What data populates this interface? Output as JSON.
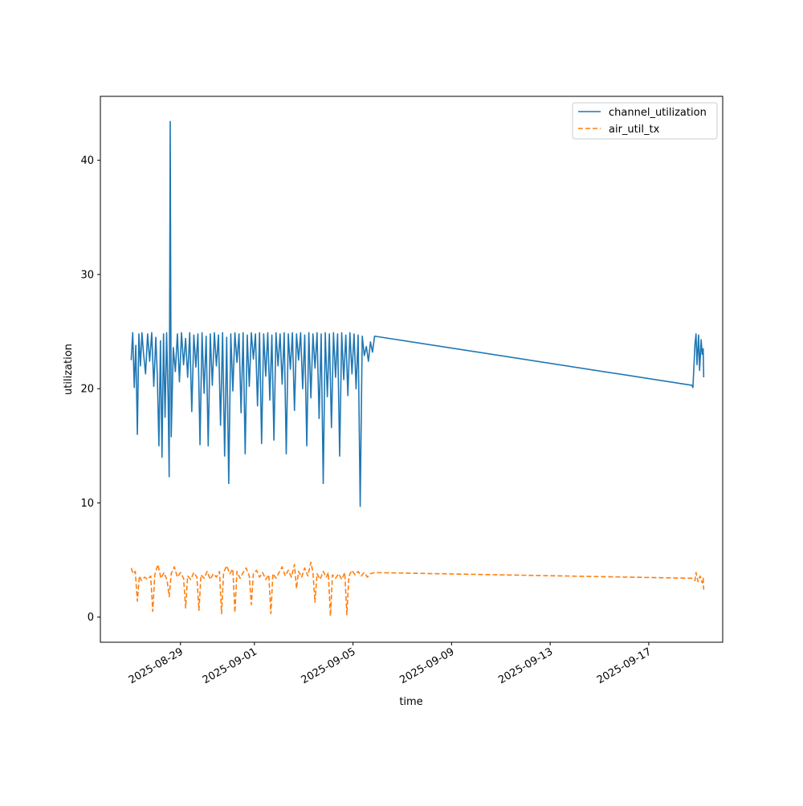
{
  "chart_data": {
    "type": "line",
    "title": "",
    "xlabel": "time",
    "ylabel": "utilization",
    "x_is_date": true,
    "xlim": [
      "2025-08-25T18:00",
      "2025-09-20T00:00"
    ],
    "ylim": [
      -2.2,
      45.6
    ],
    "x_ticks": [
      "2025-08-29",
      "2025-09-01",
      "2025-09-05",
      "2025-09-09",
      "2025-09-13",
      "2025-09-17"
    ],
    "y_ticks": [
      0,
      10,
      20,
      30,
      40
    ],
    "grid": false,
    "legend_position": "upper right",
    "series": [
      {
        "name": "channel_utilization",
        "color": "#1f77b4",
        "dash": "solid",
        "points": [
          [
            "2025-08-27T00:00",
            22.5
          ],
          [
            "2025-08-27T01:30",
            24.9
          ],
          [
            "2025-08-27T03:00",
            20.1
          ],
          [
            "2025-08-27T04:30",
            23.8
          ],
          [
            "2025-08-27T06:00",
            16.0
          ],
          [
            "2025-08-27T07:30",
            24.8
          ],
          [
            "2025-08-27T09:00",
            22.0
          ],
          [
            "2025-08-27T10:30",
            24.9
          ],
          [
            "2025-08-27T12:00",
            23.1
          ],
          [
            "2025-08-27T14:00",
            21.3
          ],
          [
            "2025-08-27T16:00",
            24.8
          ],
          [
            "2025-08-27T18:00",
            22.4
          ],
          [
            "2025-08-27T20:00",
            24.9
          ],
          [
            "2025-08-27T22:00",
            20.2
          ],
          [
            "2025-08-28T00:00",
            24.5
          ],
          [
            "2025-08-28T01:30",
            21.0
          ],
          [
            "2025-08-28T03:00",
            15.0
          ],
          [
            "2025-08-28T04:30",
            24.2
          ],
          [
            "2025-08-28T06:00",
            14.0
          ],
          [
            "2025-08-28T07:30",
            24.8
          ],
          [
            "2025-08-28T09:00",
            17.5
          ],
          [
            "2025-08-28T10:30",
            24.9
          ],
          [
            "2025-08-28T12:00",
            19.0
          ],
          [
            "2025-08-28T13:00",
            12.3
          ],
          [
            "2025-08-28T14:00",
            43.4
          ],
          [
            "2025-08-28T15:00",
            15.8
          ],
          [
            "2025-08-28T17:00",
            23.6
          ],
          [
            "2025-08-28T19:00",
            21.5
          ],
          [
            "2025-08-28T21:00",
            24.8
          ],
          [
            "2025-08-28T23:00",
            20.6
          ],
          [
            "2025-08-29T01:00",
            24.9
          ],
          [
            "2025-08-29T03:00",
            22.1
          ],
          [
            "2025-08-29T05:00",
            24.4
          ],
          [
            "2025-08-29T07:00",
            21.0
          ],
          [
            "2025-08-29T09:00",
            24.9
          ],
          [
            "2025-08-29T11:00",
            18.0
          ],
          [
            "2025-08-29T13:00",
            24.7
          ],
          [
            "2025-08-29T15:00",
            21.9
          ],
          [
            "2025-08-29T17:00",
            24.8
          ],
          [
            "2025-08-29T19:00",
            15.1
          ],
          [
            "2025-08-29T21:00",
            24.9
          ],
          [
            "2025-08-29T23:00",
            19.6
          ],
          [
            "2025-08-30T01:00",
            24.6
          ],
          [
            "2025-08-30T03:00",
            15.0
          ],
          [
            "2025-08-30T05:00",
            24.8
          ],
          [
            "2025-08-30T07:00",
            20.3
          ],
          [
            "2025-08-30T09:00",
            24.9
          ],
          [
            "2025-08-30T11:00",
            22.0
          ],
          [
            "2025-08-30T13:00",
            24.7
          ],
          [
            "2025-08-30T15:00",
            16.8
          ],
          [
            "2025-08-30T17:00",
            24.9
          ],
          [
            "2025-08-30T19:00",
            14.1
          ],
          [
            "2025-08-30T21:00",
            24.5
          ],
          [
            "2025-08-30T23:00",
            11.7
          ],
          [
            "2025-08-31T01:00",
            24.8
          ],
          [
            "2025-08-31T03:00",
            19.8
          ],
          [
            "2025-08-31T05:00",
            24.9
          ],
          [
            "2025-08-31T07:00",
            22.3
          ],
          [
            "2025-08-31T09:00",
            24.8
          ],
          [
            "2025-08-31T11:00",
            17.9
          ],
          [
            "2025-08-31T13:00",
            24.9
          ],
          [
            "2025-08-31T15:00",
            14.3
          ],
          [
            "2025-08-31T17:00",
            24.7
          ],
          [
            "2025-08-31T19:00",
            20.2
          ],
          [
            "2025-08-31T21:00",
            24.9
          ],
          [
            "2025-08-31T23:00",
            22.6
          ],
          [
            "2025-09-01T01:00",
            24.8
          ],
          [
            "2025-09-01T03:00",
            18.5
          ],
          [
            "2025-09-01T05:00",
            24.9
          ],
          [
            "2025-09-01T07:00",
            15.2
          ],
          [
            "2025-09-01T09:00",
            24.8
          ],
          [
            "2025-09-01T11:00",
            21.1
          ],
          [
            "2025-09-01T13:00",
            24.9
          ],
          [
            "2025-09-01T15:00",
            19.0
          ],
          [
            "2025-09-01T17:00",
            24.7
          ],
          [
            "2025-09-01T19:00",
            15.5
          ],
          [
            "2025-09-01T21:00",
            24.9
          ],
          [
            "2025-09-01T23:00",
            22.0
          ],
          [
            "2025-09-02T01:00",
            24.8
          ],
          [
            "2025-09-02T03:00",
            20.4
          ],
          [
            "2025-09-02T05:00",
            24.9
          ],
          [
            "2025-09-02T07:00",
            14.3
          ],
          [
            "2025-09-02T09:00",
            24.8
          ],
          [
            "2025-09-02T11:00",
            21.7
          ],
          [
            "2025-09-02T13:00",
            24.9
          ],
          [
            "2025-09-02T15:00",
            18.1
          ],
          [
            "2025-09-02T17:00",
            24.8
          ],
          [
            "2025-09-02T19:00",
            22.5
          ],
          [
            "2025-09-02T21:00",
            24.9
          ],
          [
            "2025-09-02T23:00",
            20.0
          ],
          [
            "2025-09-03T01:00",
            24.7
          ],
          [
            "2025-09-03T03:00",
            15.0
          ],
          [
            "2025-09-03T05:00",
            24.9
          ],
          [
            "2025-09-03T07:00",
            19.2
          ],
          [
            "2025-09-03T09:00",
            24.8
          ],
          [
            "2025-09-03T11:00",
            21.8
          ],
          [
            "2025-09-03T13:00",
            24.9
          ],
          [
            "2025-09-03T15:00",
            17.4
          ],
          [
            "2025-09-03T17:00",
            24.8
          ],
          [
            "2025-09-03T19:00",
            11.7
          ],
          [
            "2025-09-03T21:00",
            24.9
          ],
          [
            "2025-09-03T23:00",
            19.3
          ],
          [
            "2025-09-04T01:00",
            24.8
          ],
          [
            "2025-09-04T03:00",
            16.6
          ],
          [
            "2025-09-04T05:00",
            24.9
          ],
          [
            "2025-09-04T07:00",
            21.0
          ],
          [
            "2025-09-04T09:00",
            24.8
          ],
          [
            "2025-09-04T11:00",
            14.1
          ],
          [
            "2025-09-04T13:00",
            24.9
          ],
          [
            "2025-09-04T15:00",
            20.8
          ],
          [
            "2025-09-04T17:00",
            24.7
          ],
          [
            "2025-09-04T19:00",
            19.4
          ],
          [
            "2025-09-04T21:00",
            24.9
          ],
          [
            "2025-09-04T23:00",
            21.3
          ],
          [
            "2025-09-05T01:00",
            24.8
          ],
          [
            "2025-09-05T03:00",
            20.0
          ],
          [
            "2025-09-05T05:00",
            24.7
          ],
          [
            "2025-09-05T07:00",
            9.7
          ],
          [
            "2025-09-05T09:00",
            24.6
          ],
          [
            "2025-09-05T11:00",
            22.9
          ],
          [
            "2025-09-05T13:00",
            23.7
          ],
          [
            "2025-09-05T15:00",
            22.4
          ],
          [
            "2025-09-05T17:00",
            24.1
          ],
          [
            "2025-09-05T19:00",
            23.2
          ],
          [
            "2025-09-05T21:00",
            24.6
          ],
          [
            "2025-09-18T18:00",
            20.3
          ],
          [
            "2025-09-18T19:00",
            20.1
          ],
          [
            "2025-09-18T21:00",
            23.9
          ],
          [
            "2025-09-18T22:00",
            24.8
          ],
          [
            "2025-09-18T23:00",
            22.1
          ],
          [
            "2025-09-19T00:30",
            24.7
          ],
          [
            "2025-09-19T01:30",
            21.6
          ],
          [
            "2025-09-19T03:00",
            24.3
          ],
          [
            "2025-09-19T04:00",
            23.0
          ],
          [
            "2025-09-19T05:00",
            23.5
          ],
          [
            "2025-09-19T05:30",
            21.0
          ]
        ]
      },
      {
        "name": "air_util_tx",
        "color": "#ff7f0e",
        "dash": "dashed",
        "points": [
          [
            "2025-08-27T00:00",
            4.3
          ],
          [
            "2025-08-27T02:00",
            3.8
          ],
          [
            "2025-08-27T04:00",
            4.0
          ],
          [
            "2025-08-27T06:00",
            1.4
          ],
          [
            "2025-08-27T08:00",
            3.6
          ],
          [
            "2025-08-27T10:00",
            3.2
          ],
          [
            "2025-08-27T13:00",
            3.5
          ],
          [
            "2025-08-27T16:00",
            3.3
          ],
          [
            "2025-08-27T19:00",
            3.6
          ],
          [
            "2025-08-27T21:00",
            0.5
          ],
          [
            "2025-08-27T23:00",
            3.7
          ],
          [
            "2025-08-28T02:00",
            4.6
          ],
          [
            "2025-08-28T05:00",
            3.4
          ],
          [
            "2025-08-28T08:00",
            3.9
          ],
          [
            "2025-08-28T11:00",
            3.2
          ],
          [
            "2025-08-28T13:00",
            1.8
          ],
          [
            "2025-08-28T15:00",
            3.8
          ],
          [
            "2025-08-28T18:00",
            4.4
          ],
          [
            "2025-08-28T21:00",
            3.5
          ],
          [
            "2025-08-29T00:00",
            3.9
          ],
          [
            "2025-08-29T03:00",
            3.4
          ],
          [
            "2025-08-29T05:00",
            0.8
          ],
          [
            "2025-08-29T07:00",
            3.6
          ],
          [
            "2025-08-29T10:00",
            3.3
          ],
          [
            "2025-08-29T13:00",
            3.9
          ],
          [
            "2025-08-29T16:00",
            3.5
          ],
          [
            "2025-08-29T18:00",
            0.6
          ],
          [
            "2025-08-29T20:00",
            3.7
          ],
          [
            "2025-08-29T23:00",
            3.4
          ],
          [
            "2025-08-30T02:00",
            4.0
          ],
          [
            "2025-08-30T05:00",
            3.3
          ],
          [
            "2025-08-30T08:00",
            3.8
          ],
          [
            "2025-08-30T11:00",
            3.5
          ],
          [
            "2025-08-30T14:00",
            4.0
          ],
          [
            "2025-08-30T16:00",
            0.3
          ],
          [
            "2025-08-30T18:00",
            3.9
          ],
          [
            "2025-08-30T21:00",
            4.5
          ],
          [
            "2025-08-31T00:00",
            3.8
          ],
          [
            "2025-08-31T03:00",
            4.2
          ],
          [
            "2025-08-31T05:00",
            0.4
          ],
          [
            "2025-08-31T07:00",
            4.0
          ],
          [
            "2025-08-31T10:00",
            3.4
          ],
          [
            "2025-08-31T13:00",
            3.9
          ],
          [
            "2025-08-31T16:00",
            4.3
          ],
          [
            "2025-08-31T19:00",
            3.6
          ],
          [
            "2025-08-31T21:00",
            1.1
          ],
          [
            "2025-08-31T23:00",
            3.8
          ],
          [
            "2025-09-01T02:00",
            4.1
          ],
          [
            "2025-09-01T05:00",
            3.5
          ],
          [
            "2025-09-01T08:00",
            3.9
          ],
          [
            "2025-09-01T11:00",
            3.3
          ],
          [
            "2025-09-01T14:00",
            3.7
          ],
          [
            "2025-09-01T16:00",
            0.3
          ],
          [
            "2025-09-01T18:00",
            3.8
          ],
          [
            "2025-09-01T21:00",
            3.4
          ],
          [
            "2025-09-02T00:00",
            3.9
          ],
          [
            "2025-09-02T03:00",
            4.4
          ],
          [
            "2025-09-02T06:00",
            3.6
          ],
          [
            "2025-09-02T09:00",
            4.1
          ],
          [
            "2025-09-02T12:00",
            3.5
          ],
          [
            "2025-09-02T15:00",
            4.6
          ],
          [
            "2025-09-02T17:00",
            2.5
          ],
          [
            "2025-09-02T19:00",
            4.0
          ],
          [
            "2025-09-02T22:00",
            3.5
          ],
          [
            "2025-09-03T01:00",
            4.3
          ],
          [
            "2025-09-03T04:00",
            3.6
          ],
          [
            "2025-09-03T07:00",
            4.8
          ],
          [
            "2025-09-03T09:00",
            3.9
          ],
          [
            "2025-09-03T11:00",
            1.3
          ],
          [
            "2025-09-03T13:00",
            3.8
          ],
          [
            "2025-09-03T16:00",
            3.3
          ],
          [
            "2025-09-03T19:00",
            4.0
          ],
          [
            "2025-09-03T22:00",
            3.5
          ],
          [
            "2025-09-04T00:00",
            3.9
          ],
          [
            "2025-09-04T02:00",
            0.1
          ],
          [
            "2025-09-04T04:00",
            3.7
          ],
          [
            "2025-09-04T07:00",
            3.4
          ],
          [
            "2025-09-04T10:00",
            3.8
          ],
          [
            "2025-09-04T13:00",
            3.3
          ],
          [
            "2025-09-04T16:00",
            3.9
          ],
          [
            "2025-09-04T18:00",
            0.2
          ],
          [
            "2025-09-04T20:00",
            3.6
          ],
          [
            "2025-09-04T23:00",
            4.1
          ],
          [
            "2025-09-05T02:00",
            3.7
          ],
          [
            "2025-09-05T05:00",
            4.0
          ],
          [
            "2025-09-05T08:00",
            3.6
          ],
          [
            "2025-09-05T11:00",
            3.9
          ],
          [
            "2025-09-05T14:00",
            3.5
          ],
          [
            "2025-09-05T17:00",
            3.8
          ],
          [
            "2025-09-05T21:00",
            3.9
          ],
          [
            "2025-09-18T18:00",
            3.4
          ],
          [
            "2025-09-18T21:00",
            3.2
          ],
          [
            "2025-09-18T22:00",
            3.9
          ],
          [
            "2025-09-19T00:00",
            3.1
          ],
          [
            "2025-09-19T02:00",
            3.6
          ],
          [
            "2025-09-19T04:00",
            3.0
          ],
          [
            "2025-09-19T05:00",
            3.4
          ],
          [
            "2025-09-19T05:30",
            2.4
          ]
        ]
      }
    ]
  }
}
